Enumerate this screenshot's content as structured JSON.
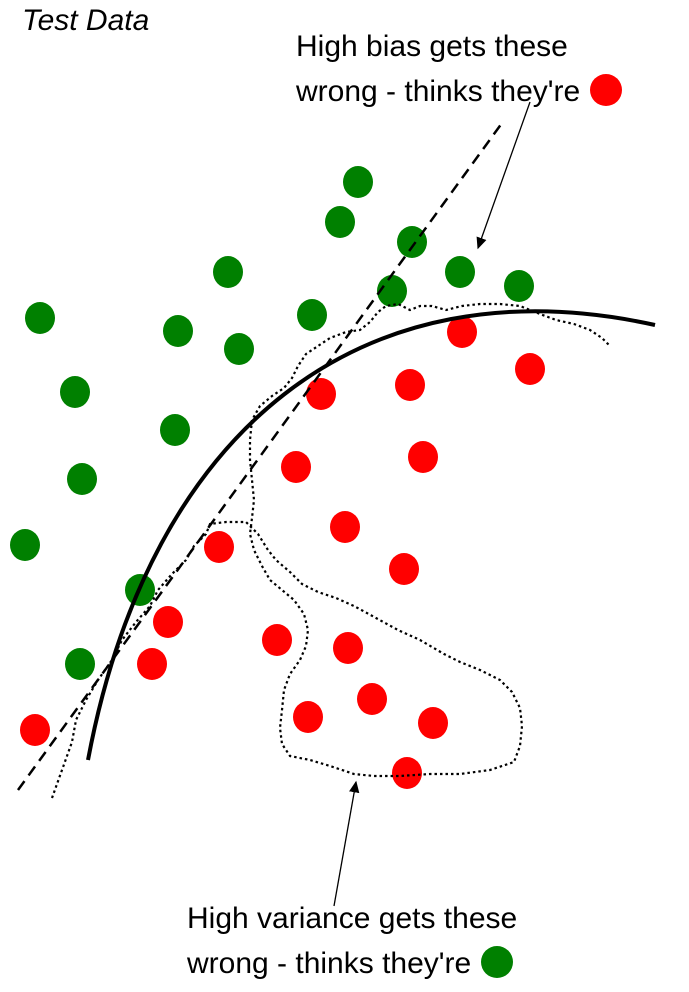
{
  "title": "Test Data",
  "annotations": {
    "bias": {
      "line1": "High bias gets these",
      "line2": "wrong - thinks they're",
      "swatch_color": "#ff0000"
    },
    "variance": {
      "line1": "High variance gets these",
      "line2": "wrong - thinks they're",
      "swatch_color": "#008000"
    }
  },
  "colors": {
    "green": "#008000",
    "red": "#ff0000",
    "line": "#000000"
  },
  "boundaries": [
    {
      "name": "high-bias-boundary",
      "style": "dashed straight line"
    },
    {
      "name": "good-fit-boundary",
      "style": "solid curve"
    },
    {
      "name": "high-variance-boundary",
      "style": "dotted irregular contour"
    }
  ]
}
